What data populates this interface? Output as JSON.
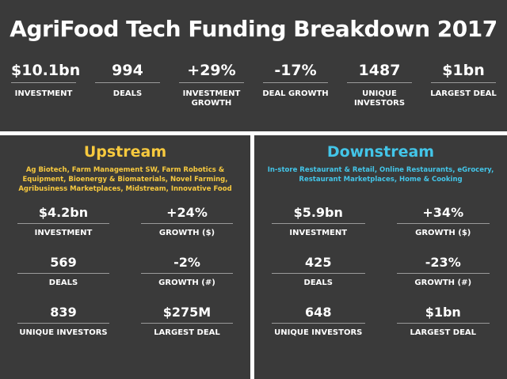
{
  "title": "AgriFood Tech Funding Breakdown 2017",
  "top_stats": [
    {
      "value": "$10.1bn",
      "label": "INVESTMENT"
    },
    {
      "value": "994",
      "label": "DEALS"
    },
    {
      "value": "+29%",
      "label": "INVESTMENT GROWTH"
    },
    {
      "value": "-17%",
      "label": "DEAL GROWTH"
    },
    {
      "value": "1487",
      "label": "UNIQUE INVESTORS"
    },
    {
      "value": "$1bn",
      "label": "LARGEST DEAL"
    }
  ],
  "upstream": {
    "title": "Upstream",
    "description": "Ag Biotech, Farm Management SW, Farm Robotics & Equipment, Bioenergy & Biomaterials, Novel Farming, Agribusiness Marketplaces, Midstream, Innovative Food",
    "color": "#f7c93e",
    "stats": [
      {
        "value": "$4.2bn",
        "label": "INVESTMENT"
      },
      {
        "value": "+24%",
        "label": "GROWTH ($)"
      },
      {
        "value": "569",
        "label": "DEALS"
      },
      {
        "value": "-2%",
        "label": "GROWTH (#)"
      },
      {
        "value": "839",
        "label": "UNIQUE INVESTORS"
      },
      {
        "value": "$275M",
        "label": "LARGEST DEAL"
      }
    ]
  },
  "downstream": {
    "title": "Downstream",
    "description": "In-store Restaurant & Retail, Online Restaurants, eGrocery, Restaurant Marketplaces, Home & Cooking",
    "color": "#43c5e8",
    "stats": [
      {
        "value": "$5.9bn",
        "label": "INVESTMENT"
      },
      {
        "value": "+34%",
        "label": "GROWTH ($)"
      },
      {
        "value": "425",
        "label": "DEALS"
      },
      {
        "value": "-23%",
        "label": "GROWTH (#)"
      },
      {
        "value": "648",
        "label": "UNIQUE INVESTORS"
      },
      {
        "value": "$1bn",
        "label": "LARGEST DEAL"
      }
    ]
  }
}
